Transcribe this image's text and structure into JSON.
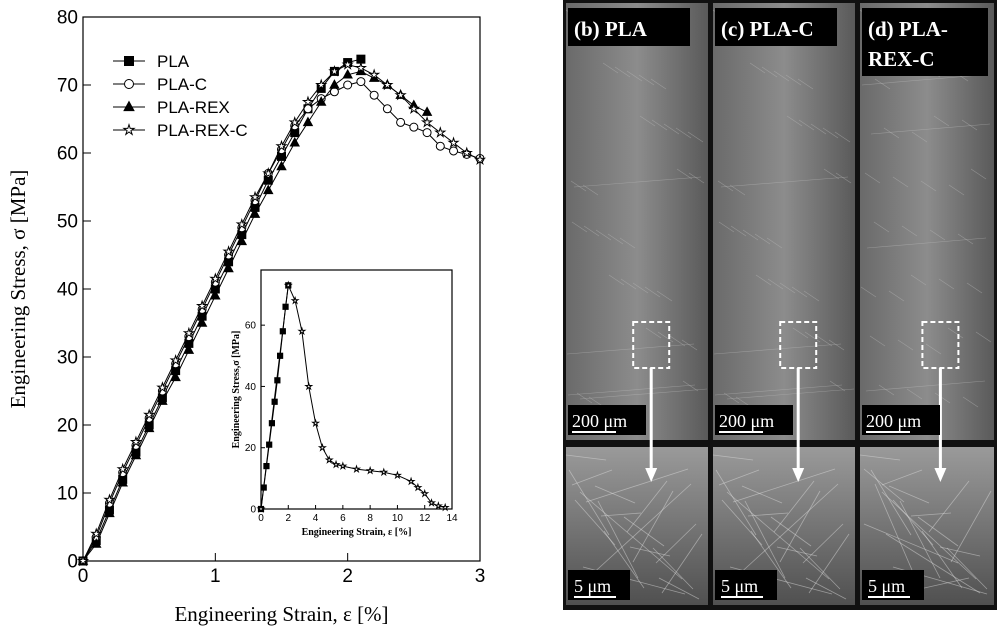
{
  "chart_data": [
    {
      "type": "line",
      "x_label": "Engineering Strain, ε [%]",
      "y_label": "Engineering Stress, σ [MPa]",
      "x": [
        0,
        0.1,
        0.2,
        0.3,
        0.4,
        0.5,
        0.6,
        0.7,
        0.8,
        0.9,
        1.0,
        1.1,
        1.2,
        1.3,
        1.4,
        1.5,
        1.6,
        1.7,
        1.8,
        1.9,
        2.0,
        2.1,
        2.2,
        2.3,
        2.4,
        2.5,
        2.6,
        2.7,
        2.8,
        2.9,
        3.0
      ],
      "xlim": [
        0,
        3
      ],
      "ylim": [
        0,
        80
      ],
      "xticks": [
        0,
        1,
        2,
        3
      ],
      "yticks": [
        0,
        10,
        20,
        30,
        40,
        50,
        60,
        70,
        80
      ],
      "legend": "upper left",
      "series": [
        {
          "name": "PLA",
          "color": "#000000",
          "marker": "square",
          "filled": true,
          "values": [
            0,
            3,
            7.5,
            12,
            16,
            20,
            24,
            28,
            32,
            36,
            40,
            44,
            48,
            52,
            56,
            59.5,
            63,
            66.5,
            69.5,
            72,
            73.3,
            73.8,
            null,
            null,
            null,
            null,
            null,
            null,
            null,
            null,
            null
          ]
        },
        {
          "name": "PLA-C",
          "color": "#000000",
          "marker": "circle",
          "filled": false,
          "values": [
            0,
            3.5,
            8.5,
            13,
            17,
            21,
            25,
            29,
            33,
            37,
            41,
            45,
            49,
            53,
            57,
            60.5,
            64,
            66.5,
            68,
            69,
            70,
            70.5,
            68.5,
            66.5,
            64.5,
            63.8,
            63,
            61,
            60.3,
            59.8,
            59.2
          ]
        },
        {
          "name": "PLA-REX",
          "color": "#000000",
          "marker": "triangle",
          "filled": true,
          "values": [
            0,
            2.5,
            7,
            11.5,
            15.5,
            19.5,
            23.5,
            27,
            31,
            35,
            39,
            43,
            47,
            51,
            54.5,
            58,
            61.5,
            64.5,
            67.5,
            70,
            71.5,
            72,
            71,
            70,
            68.5,
            67,
            66,
            null,
            null,
            null,
            null
          ]
        },
        {
          "name": "PLA-REX-C",
          "color": "#000000",
          "marker": "star",
          "filled": false,
          "values": [
            0,
            4,
            9,
            13.5,
            17.5,
            21.5,
            25.5,
            29.5,
            33.5,
            37.5,
            41.5,
            45.5,
            49.5,
            53.5,
            57,
            61,
            64.5,
            67.5,
            70,
            72,
            73,
            72.5,
            71.5,
            70,
            68.5,
            66.5,
            64.5,
            63,
            61.5,
            60,
            59
          ]
        }
      ]
    },
    {
      "type": "line",
      "x_label": "Engineering Strain, ε [%]",
      "y_label": "Engineering Stress,σ [MPa]",
      "xlim": [
        0,
        14
      ],
      "ylim": [
        0,
        78
      ],
      "xticks": [
        0,
        2,
        4,
        6,
        8,
        10,
        12,
        14
      ],
      "yticks": [
        0,
        20,
        40,
        60
      ],
      "series": [
        {
          "color": "#000000",
          "marker": "square",
          "filled": true,
          "x": [
            0,
            0.2,
            0.4,
            0.6,
            0.8,
            1.0,
            1.2,
            1.4,
            1.6,
            1.8,
            2.0
          ],
          "values": [
            0,
            7,
            14,
            21,
            28,
            35,
            42,
            50,
            58,
            66,
            73
          ]
        },
        {
          "color": "#000000",
          "marker": "star",
          "filled": false,
          "x": [
            0,
            2,
            2.5,
            3,
            3.5,
            4,
            4.5,
            5,
            5.5,
            6,
            7,
            8,
            9,
            10,
            11,
            11.5,
            12,
            12.5,
            13,
            13.5
          ],
          "values": [
            0,
            73,
            68,
            58,
            40,
            28,
            20,
            16,
            14.5,
            14,
            13,
            12.5,
            12,
            11,
            9,
            7,
            5,
            2,
            1,
            0.5
          ]
        }
      ]
    }
  ],
  "panels": [
    {
      "label": [
        "(b) PLA"
      ],
      "scale_top": "200 μm",
      "scale_bottom": "5 μm"
    },
    {
      "label": [
        "(c) PLA-C"
      ],
      "scale_top": "200 μm",
      "scale_bottom": "5 μm"
    },
    {
      "label": [
        "(d) PLA-",
        "REX-C"
      ],
      "scale_top": "200 μm",
      "scale_bottom": "5 μm"
    }
  ]
}
